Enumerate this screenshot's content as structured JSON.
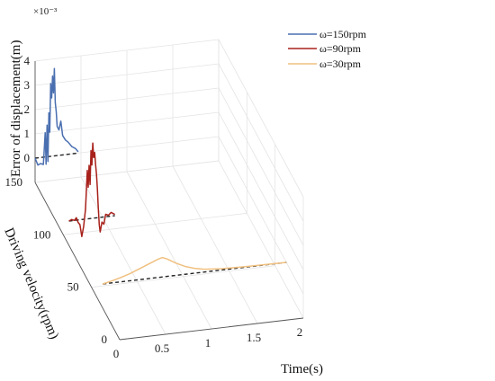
{
  "chart_data": {
    "type": "line",
    "view": "3d-waterfall",
    "xlabel": "Time(s)",
    "ylabel": "Driving velocity(rpm)",
    "zlabel": "Error of displacement(m)",
    "z_exponent": "×10⁻³",
    "xlim": [
      0,
      2
    ],
    "ylim": [
      0,
      150
    ],
    "zlim": [
      -1,
      4
    ],
    "x_ticks": [
      "0",
      "0.5",
      "1",
      "1.5",
      "2"
    ],
    "y_ticks": [
      "0",
      "50",
      "100",
      "150"
    ],
    "z_ticks": [
      "0",
      "1",
      "2",
      "3",
      "4"
    ],
    "x_tick_values": [
      0,
      0.5,
      1,
      1.5,
      2
    ],
    "y_tick_values": [
      0,
      50,
      100,
      150
    ],
    "z_tick_values": [
      0,
      1,
      2,
      3,
      4
    ],
    "grid": true,
    "legend": "top-right",
    "series": [
      {
        "name": "ω=150rpm",
        "velocity": 150,
        "color": "#4a6fb0",
        "points": [
          [
            0,
            0
          ],
          [
            0.03,
            -0.3
          ],
          [
            0.06,
            -0.25
          ],
          [
            0.09,
            -0.3
          ],
          [
            0.11,
            1.0
          ],
          [
            0.12,
            -0.3
          ],
          [
            0.13,
            1.3
          ],
          [
            0.14,
            -0.2
          ],
          [
            0.15,
            1.8
          ],
          [
            0.16,
            1.0
          ],
          [
            0.17,
            3.0
          ],
          [
            0.18,
            2.4
          ],
          [
            0.19,
            3.3
          ],
          [
            0.2,
            2.6
          ],
          [
            0.21,
            3.6
          ],
          [
            0.22,
            2.2
          ],
          [
            0.23,
            1.8
          ],
          [
            0.24,
            1.2
          ],
          [
            0.26,
            1.05
          ],
          [
            0.28,
            1.4
          ],
          [
            0.3,
            0.8
          ],
          [
            0.33,
            0.6
          ],
          [
            0.36,
            0.5
          ],
          [
            0.4,
            0.3
          ],
          [
            0.44,
            0.2
          ],
          [
            0.47,
            0.05
          ]
        ]
      },
      {
        "name": "ω=90rpm",
        "velocity": 90,
        "color": "#a8201a",
        "points": [
          [
            0,
            0
          ],
          [
            0.03,
            0.05
          ],
          [
            0.06,
            0
          ],
          [
            0.08,
            0.1
          ],
          [
            0.1,
            -0.1
          ],
          [
            0.12,
            -0.2
          ],
          [
            0.14,
            -0.7
          ],
          [
            0.16,
            -0.3
          ],
          [
            0.18,
            0.4
          ],
          [
            0.19,
            1.2
          ],
          [
            0.2,
            2.0
          ],
          [
            0.21,
            1.3
          ],
          [
            0.22,
            2.2
          ],
          [
            0.23,
            1.4
          ],
          [
            0.24,
            2.8
          ],
          [
            0.25,
            2.2
          ],
          [
            0.26,
            3.1
          ],
          [
            0.27,
            2.5
          ],
          [
            0.28,
            2.7
          ],
          [
            0.29,
            2.2
          ],
          [
            0.3,
            1.8
          ],
          [
            0.31,
            1.2
          ],
          [
            0.32,
            0.4
          ],
          [
            0.33,
            -0.3
          ],
          [
            0.34,
            -0.6
          ],
          [
            0.36,
            -0.2
          ],
          [
            0.38,
            -0.3
          ],
          [
            0.4,
            0.1
          ],
          [
            0.43,
            0.05
          ],
          [
            0.46,
            0.15
          ],
          [
            0.5,
            0.05
          ]
        ]
      },
      {
        "name": "ω=30rpm",
        "velocity": 30,
        "color": "#f0c080",
        "points": [
          [
            0,
            0
          ],
          [
            0.1,
            0.08
          ],
          [
            0.2,
            0.18
          ],
          [
            0.3,
            0.3
          ],
          [
            0.4,
            0.45
          ],
          [
            0.5,
            0.6
          ],
          [
            0.6,
            0.75
          ],
          [
            0.65,
            0.8
          ],
          [
            0.7,
            0.72
          ],
          [
            0.8,
            0.5
          ],
          [
            0.9,
            0.32
          ],
          [
            1.0,
            0.2
          ],
          [
            1.1,
            0.12
          ],
          [
            1.2,
            0.08
          ],
          [
            1.3,
            0.05
          ],
          [
            1.4,
            0.04
          ],
          [
            1.5,
            0.03
          ],
          [
            1.6,
            0.02
          ],
          [
            1.8,
            0.01
          ],
          [
            2.0,
            0
          ]
        ]
      }
    ]
  }
}
